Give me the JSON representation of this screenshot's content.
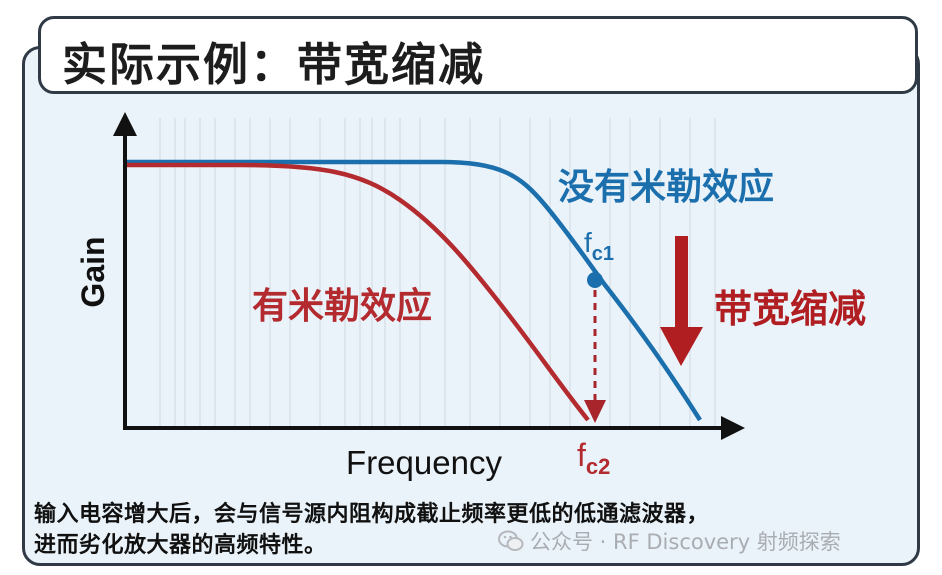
{
  "title": "实际示例：带宽缩减",
  "axes": {
    "ylabel": "Gain",
    "xlabel": "Frequency"
  },
  "curves": {
    "without_miller": {
      "label": "没有米勒效应",
      "color": "#1b6fad",
      "cutoff_label_main": "f",
      "cutoff_label_sub": "c1"
    },
    "with_miller": {
      "label": "有米勒效应",
      "color": "#b32a2f",
      "cutoff_label_main": "f",
      "cutoff_label_sub": "c2"
    }
  },
  "annotation": {
    "label": "带宽缩减",
    "color": "#b01e22"
  },
  "caption": {
    "line1": "输入电容增大后，会与信号源内阻构成截止频率更低的低通滤波器，",
    "line2": "进而劣化放大器的高频特性。"
  },
  "watermark": {
    "text": "公众号 · RF Discovery 射频探索",
    "icon": "wechat-icon"
  }
}
